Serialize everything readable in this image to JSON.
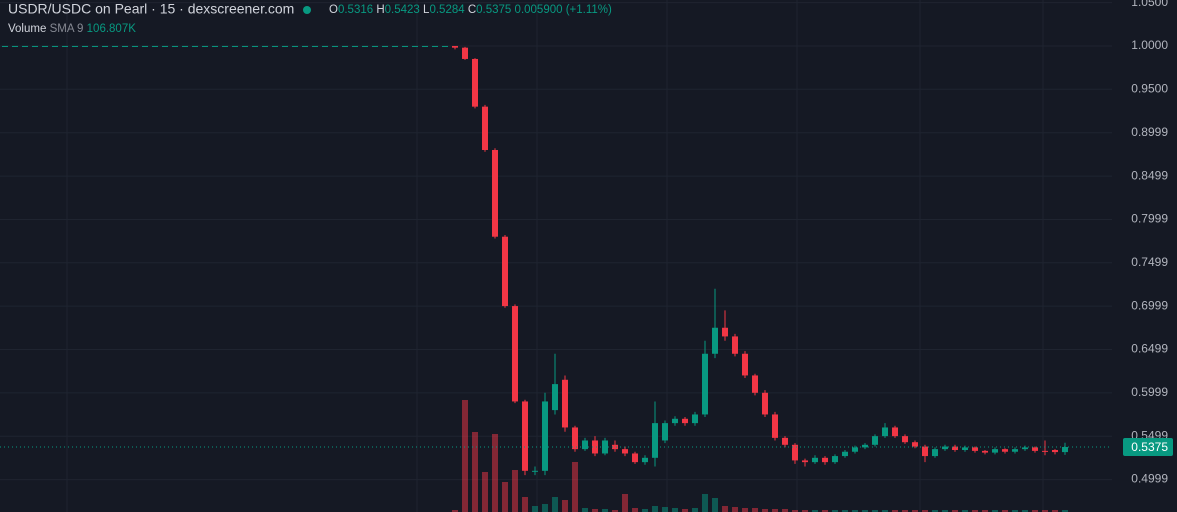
{
  "chart_data": {
    "type": "candlestick",
    "title": "USDR/USDC on Pearl · 15 · dexscreener.com",
    "legend": {
      "o_label": "O",
      "o_value": "0.5316",
      "h_label": "H",
      "h_value": "0.5423",
      "l_label": "L",
      "l_value": "0.5284",
      "c_label": "C",
      "c_value": "0.5375",
      "change": "0.005900 (+1.11%)"
    },
    "volume_legend": {
      "name": "Volume",
      "indicator": "SMA 9",
      "value": "106.807K"
    },
    "up_color": "#089981",
    "down_color": "#f23645",
    "ylim": [
      0.4625,
      1.053
    ],
    "yticks": [
      {
        "value": 1.05,
        "label": "1.0500"
      },
      {
        "value": 1.0,
        "label": "1.0000"
      },
      {
        "value": 0.95,
        "label": "0.9500"
      },
      0.8999,
      0.8499,
      0.7999,
      0.7499,
      0.6999,
      0.6499,
      0.5999,
      0.5499,
      0.4999
    ],
    "grid": true,
    "last_price": {
      "value": 0.5375,
      "label": "0.5375"
    },
    "open": [
      1,
      1,
      1,
      1,
      1,
      1,
      1,
      1,
      1,
      1,
      1,
      1,
      1,
      1,
      1,
      1,
      1,
      1,
      1,
      1,
      1,
      1,
      1,
      1,
      1,
      1,
      1,
      1,
      1,
      1,
      1,
      1,
      1,
      1,
      1,
      1,
      1,
      1,
      1,
      1,
      1,
      1,
      1,
      1,
      1,
      1.0,
      0.998,
      0.985,
      0.93,
      0.88,
      0.78,
      0.7,
      0.59,
      0.51,
      0.51,
      0.58,
      0.615,
      0.56,
      0.535,
      0.545,
      0.53,
      0.54,
      0.535,
      0.53,
      0.52,
      0.525,
      0.545,
      0.565,
      0.57,
      0.565,
      0.575,
      0.645,
      0.675,
      0.665,
      0.645,
      0.62,
      0.6,
      0.575,
      0.548,
      0.54,
      0.522,
      0.52,
      0.525,
      0.52,
      0.527,
      0.532,
      0.537,
      0.54,
      0.55,
      0.56,
      0.55,
      0.543,
      0.538,
      0.527,
      0.535,
      0.538,
      0.534,
      0.537,
      0.533,
      0.531,
      0.535,
      0.532,
      0.535,
      0.537,
      0.533,
      0.534,
      0.5316
    ],
    "high": [
      1,
      1,
      1,
      1,
      1,
      1,
      1,
      1,
      1,
      1,
      1,
      1,
      1,
      1,
      1,
      1,
      1,
      1,
      1,
      1,
      1,
      1,
      1,
      1,
      1,
      1,
      1,
      1,
      1,
      1,
      1,
      1,
      1,
      1,
      1,
      1,
      1,
      1,
      1,
      1,
      1,
      1,
      1,
      1,
      1,
      1.0,
      0.999,
      0.986,
      0.932,
      0.882,
      0.782,
      0.702,
      0.592,
      0.515,
      0.6,
      0.645,
      0.62,
      0.562,
      0.548,
      0.55,
      0.548,
      0.545,
      0.538,
      0.532,
      0.528,
      0.59,
      0.568,
      0.573,
      0.572,
      0.578,
      0.66,
      0.72,
      0.695,
      0.668,
      0.648,
      0.622,
      0.603,
      0.578,
      0.55,
      0.542,
      0.524,
      0.528,
      0.527,
      0.529,
      0.534,
      0.539,
      0.542,
      0.552,
      0.565,
      0.562,
      0.552,
      0.545,
      0.54,
      0.537,
      0.54,
      0.54,
      0.539,
      0.538,
      0.534,
      0.537,
      0.536,
      0.537,
      0.539,
      0.538,
      0.545,
      0.535,
      0.5423
    ],
    "low": [
      1,
      1,
      1,
      1,
      1,
      1,
      1,
      1,
      1,
      1,
      1,
      1,
      1,
      1,
      1,
      1,
      1,
      1,
      1,
      1,
      1,
      1,
      1,
      1,
      1,
      1,
      1,
      1,
      1,
      1,
      1,
      1,
      1,
      1,
      1,
      1,
      1,
      1,
      1,
      1,
      1,
      1,
      1,
      1,
      1,
      0.996,
      0.984,
      0.928,
      0.878,
      0.778,
      0.698,
      0.588,
      0.505,
      0.505,
      0.505,
      0.575,
      0.555,
      0.532,
      0.533,
      0.527,
      0.528,
      0.532,
      0.527,
      0.518,
      0.517,
      0.515,
      0.542,
      0.562,
      0.562,
      0.562,
      0.572,
      0.64,
      0.66,
      0.642,
      0.617,
      0.597,
      0.572,
      0.545,
      0.537,
      0.518,
      0.515,
      0.518,
      0.517,
      0.518,
      0.525,
      0.53,
      0.535,
      0.538,
      0.548,
      0.548,
      0.541,
      0.536,
      0.52,
      0.525,
      0.533,
      0.532,
      0.532,
      0.531,
      0.529,
      0.529,
      0.53,
      0.53,
      0.533,
      0.531,
      0.528,
      0.529,
      0.5284
    ],
    "close": [
      1,
      1,
      1,
      1,
      1,
      1,
      1,
      1,
      1,
      1,
      1,
      1,
      1,
      1,
      1,
      1,
      1,
      1,
      1,
      1,
      1,
      1,
      1,
      1,
      1,
      1,
      1,
      1,
      1,
      1,
      1,
      1,
      1,
      1,
      1,
      1,
      1,
      1,
      1,
      1,
      1,
      1,
      1,
      1,
      1,
      0.998,
      0.985,
      0.93,
      0.88,
      0.78,
      0.7,
      0.59,
      0.51,
      0.51,
      0.59,
      0.61,
      0.56,
      0.535,
      0.545,
      0.53,
      0.545,
      0.535,
      0.53,
      0.52,
      0.525,
      0.565,
      0.565,
      0.57,
      0.565,
      0.575,
      0.645,
      0.675,
      0.665,
      0.645,
      0.62,
      0.6,
      0.575,
      0.548,
      0.54,
      0.522,
      0.52,
      0.525,
      0.52,
      0.527,
      0.532,
      0.537,
      0.54,
      0.55,
      0.56,
      0.55,
      0.543,
      0.538,
      0.527,
      0.535,
      0.538,
      0.534,
      0.537,
      0.533,
      0.531,
      0.535,
      0.532,
      0.535,
      0.537,
      0.533,
      0.532,
      0.5316,
      0.5375
    ],
    "volume": [
      null,
      null,
      null,
      null,
      null,
      null,
      null,
      null,
      null,
      null,
      null,
      null,
      null,
      null,
      null,
      null,
      null,
      null,
      null,
      null,
      null,
      null,
      null,
      null,
      null,
      null,
      null,
      null,
      null,
      null,
      null,
      null,
      null,
      null,
      null,
      null,
      null,
      null,
      null,
      null,
      null,
      null,
      null,
      null,
      null,
      20,
      1120,
      800,
      400,
      780,
      300,
      420,
      150,
      60,
      80,
      150,
      120,
      500,
      40,
      30,
      30,
      20,
      180,
      40,
      30,
      60,
      50,
      40,
      30,
      40,
      180,
      140,
      60,
      50,
      40,
      40,
      30,
      30,
      30,
      20,
      20,
      20,
      20,
      20,
      20,
      20,
      20,
      20,
      20,
      20,
      20,
      20,
      20,
      20,
      20,
      20,
      20,
      20,
      20,
      20,
      20,
      20,
      20,
      20,
      20,
      20,
      20
    ]
  }
}
